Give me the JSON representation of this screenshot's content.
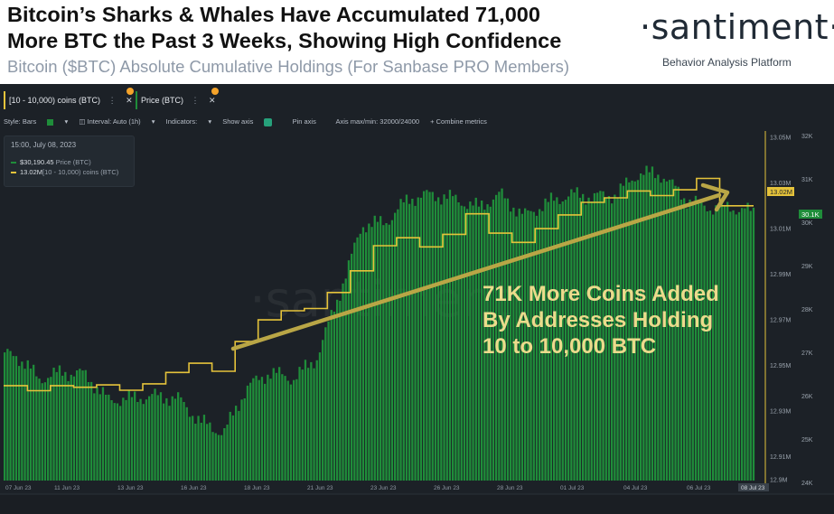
{
  "header": {
    "title_line1": "Bitcoin’s Sharks & Whales Have Accumulated 71,000",
    "title_line2": "More BTC the Past 3 Weeks, Showing High Confidence",
    "subtitle": "Bitcoin ($BTC) Absolute Cumulative Holdings (For Sanbase PRO Members)",
    "brand": "·santiment·",
    "brand_tagline": "Behavior Analysis Platform"
  },
  "metric_chips": [
    {
      "label": "[10 - 10,000) coins (BTC)",
      "color": "#e5c33b"
    },
    {
      "label": "Price (BTC)",
      "color": "#1f8d3a"
    }
  ],
  "toolbar": {
    "style": "Style: Bars",
    "interval": "Interval: Auto (1h)",
    "indicators": "Indicators:",
    "show_axis": "Show axis",
    "pin_axis": "Pin axis",
    "axis_maxmin": "Axis max/min: 32000/24000",
    "combine": "Combine metrics"
  },
  "tooltip": {
    "date": "15:00, July 08, 2023",
    "price": "$30,190.45",
    "price_label": "Price (BTC)",
    "holdings": "13.02M",
    "holdings_label": "[10 - 10,000) coins (BTC)"
  },
  "colors": {
    "background": "#1c2127",
    "bars": "#1f8d3a",
    "holdings_line": "#e5c33b",
    "annotation": "#ecdb8c",
    "arrow": "#b9a646"
  },
  "annotation": {
    "line1": "71K More Coins Added",
    "line2": "By Addresses Holding",
    "line3": "10 to 10,000 BTC"
  },
  "watermark": "·santiment·",
  "chart_data": {
    "type": "bar",
    "x_ticks": [
      "07 Jun 23",
      "11 Jun 23",
      "13 Jun 23",
      "16 Jun 23",
      "18 Jun 23",
      "21 Jun 23",
      "23 Jun 23",
      "26 Jun 23",
      "28 Jun 23",
      "01 Jul 23",
      "04 Jul 23",
      "06 Jul 23"
    ],
    "x_end_label": "08 Jul 23",
    "y_left": {
      "label": "[10 - 10,000) coins (BTC)",
      "ticks": [
        "13.05M",
        "13.03M",
        "13.01M",
        "12.99M",
        "12.97M",
        "12.95M",
        "12.93M",
        "12.91M",
        "12.9M"
      ],
      "range": [
        12.8996,
        13.0516
      ]
    },
    "y_right": {
      "label": "Price (BTC)",
      "ticks": [
        "32K",
        "31K",
        "30K",
        "29K",
        "28K",
        "27K",
        "26K",
        "25K",
        "24K"
      ],
      "range": [
        24000,
        32000
      ]
    },
    "current_labels": {
      "holdings": "13.02M",
      "price": "30.1K"
    },
    "series": [
      {
        "name": "Price (BTC)",
        "style": "bars",
        "axis": "right",
        "points": [
          [
            "2023-06-06",
            26900
          ],
          [
            "2023-06-07",
            26350
          ],
          [
            "2023-06-08",
            26500
          ],
          [
            "2023-06-09",
            26450
          ],
          [
            "2023-06-10",
            25850
          ],
          [
            "2023-06-11",
            25900
          ],
          [
            "2023-06-12",
            25950
          ],
          [
            "2023-06-13",
            25900
          ],
          [
            "2023-06-14",
            25350
          ],
          [
            "2023-06-15",
            25100
          ],
          [
            "2023-06-16",
            26150
          ],
          [
            "2023-06-17",
            26500
          ],
          [
            "2023-06-18",
            26350
          ],
          [
            "2023-06-19",
            26800
          ],
          [
            "2023-06-20",
            28300
          ],
          [
            "2023-06-21",
            29900
          ],
          [
            "2023-06-22",
            29950
          ],
          [
            "2023-06-23",
            30500
          ],
          [
            "2023-06-24",
            30600
          ],
          [
            "2023-06-25",
            30500
          ],
          [
            "2023-06-26",
            30300
          ],
          [
            "2023-06-27",
            30600
          ],
          [
            "2023-06-28",
            30100
          ],
          [
            "2023-06-29",
            30400
          ],
          [
            "2023-06-30",
            30600
          ],
          [
            "2023-07-01",
            30550
          ],
          [
            "2023-07-02",
            30600
          ],
          [
            "2023-07-03",
            31100
          ],
          [
            "2023-07-04",
            31050
          ],
          [
            "2023-07-05",
            30500
          ],
          [
            "2023-07-06",
            30300
          ],
          [
            "2023-07-07",
            30300
          ],
          [
            "2023-07-08",
            30190
          ]
        ]
      },
      {
        "name": "[10 - 10,000) coins (BTC)",
        "style": "step-line",
        "axis": "left",
        "points": [
          [
            "2023-06-06",
            12.9412
          ],
          [
            "2023-06-07",
            12.939
          ],
          [
            "2023-06-08",
            12.9412
          ],
          [
            "2023-06-09",
            12.9405
          ],
          [
            "2023-06-10",
            12.9415
          ],
          [
            "2023-06-11",
            12.9392
          ],
          [
            "2023-06-12",
            12.942
          ],
          [
            "2023-06-13",
            12.947
          ],
          [
            "2023-06-14",
            12.951
          ],
          [
            "2023-06-15",
            12.9475
          ],
          [
            "2023-06-16",
            12.9605
          ],
          [
            "2023-06-17",
            12.97
          ],
          [
            "2023-06-18",
            12.974
          ],
          [
            "2023-06-19",
            12.975
          ],
          [
            "2023-06-20",
            12.982
          ],
          [
            "2023-06-21",
            12.9915
          ],
          [
            "2023-06-22",
            13.0025
          ],
          [
            "2023-06-23",
            13.006
          ],
          [
            "2023-06-24",
            13.002
          ],
          [
            "2023-06-25",
            13.0075
          ],
          [
            "2023-06-26",
            13.0165
          ],
          [
            "2023-06-27",
            13.008
          ],
          [
            "2023-06-28",
            13.004
          ],
          [
            "2023-06-29",
            13.01
          ],
          [
            "2023-06-30",
            13.016
          ],
          [
            "2023-07-01",
            13.0215
          ],
          [
            "2023-07-02",
            13.0235
          ],
          [
            "2023-07-03",
            13.0265
          ],
          [
            "2023-07-04",
            13.0245
          ],
          [
            "2023-07-05",
            13.027
          ],
          [
            "2023-07-06",
            13.032
          ],
          [
            "2023-07-07",
            13.02
          ],
          [
            "2023-07-08",
            13.02
          ]
        ]
      }
    ],
    "grid": false
  }
}
